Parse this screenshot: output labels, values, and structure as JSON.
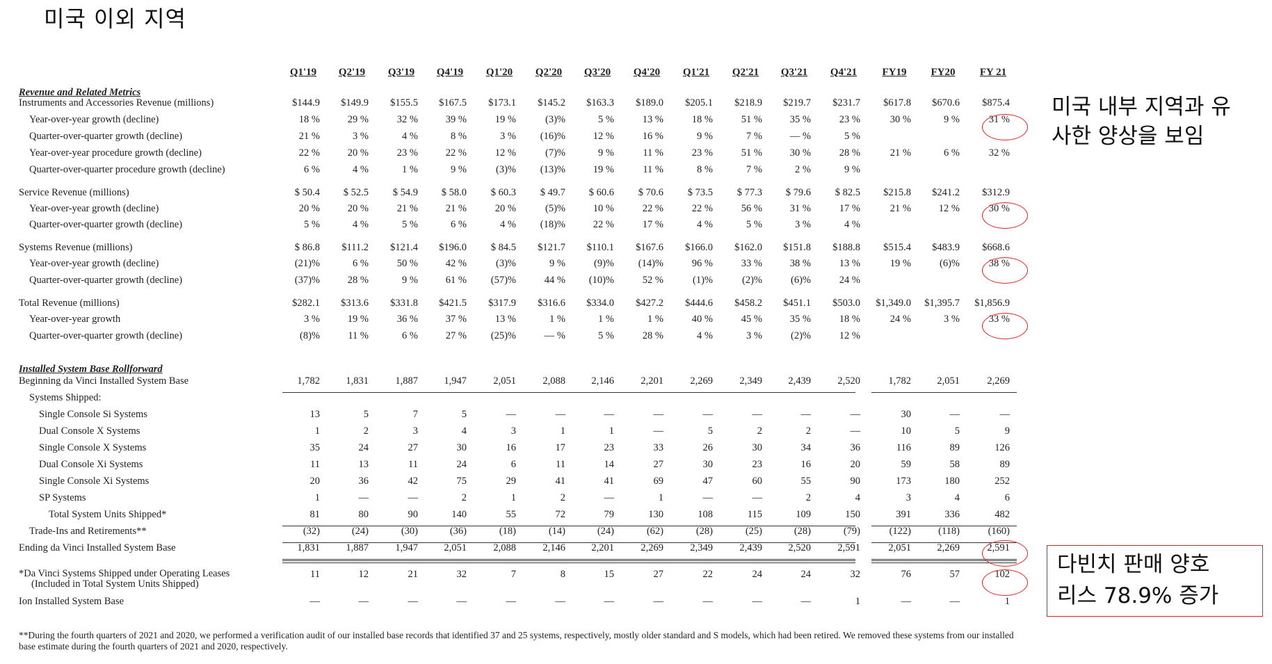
{
  "slide_title": "미국 이외 지역",
  "annotation_1": [
    "미국 내부 지역과 유",
    "사한 양상을 보임"
  ],
  "annotation_2": [
    "다빈치 판매 양호",
    "리스 78.9% 증가"
  ],
  "accent_color": "#e02020",
  "columns": [
    "Q1'19",
    "Q2'19",
    "Q3'19",
    "Q4'19",
    "Q1'20",
    "Q2'20",
    "Q3'20",
    "Q4'20",
    "Q1'21",
    "Q2'21",
    "Q3'21",
    "Q4'21",
    "FY19",
    "FY20",
    "FY 21"
  ],
  "sections": [
    {
      "title": "Revenue and Related Metrics",
      "top": 125
    },
    {
      "title": "Installed System Base Rollforward",
      "top": 523
    }
  ],
  "rows": [
    {
      "label": "Instruments and Accessories Revenue (millions)",
      "indent": 0,
      "top": 149,
      "values": [
        "$144.9",
        "$149.9",
        "$155.5",
        "$167.5",
        "$173.1",
        "$145.2",
        "$163.3",
        "$189.0",
        "$205.1",
        "$218.9",
        "$219.7",
        "$231.7",
        "$617.8",
        "$670.6",
        "$875.4"
      ]
    },
    {
      "label": "Year-over-year growth (decline)",
      "indent": 1,
      "top": 173,
      "values": [
        "18 %",
        "29 %",
        "32 %",
        "39 %",
        "19 %",
        "(3)%",
        "5 %",
        "13 %",
        "18 %",
        "51 %",
        "35 %",
        "23 %",
        "30 %",
        "9 %",
        "31 %"
      ]
    },
    {
      "label": "Quarter-over-quarter growth (decline)",
      "indent": 1,
      "top": 197,
      "values": [
        "21 %",
        "3 %",
        "4 %",
        "8 %",
        "3 %",
        "(16)%",
        "12 %",
        "16 %",
        "9 %",
        "7 %",
        "— %",
        "5 %",
        "",
        "",
        ""
      ]
    },
    {
      "label": "Year-over-year procedure growth (decline)",
      "indent": 1,
      "top": 221,
      "values": [
        "22 %",
        "20 %",
        "23 %",
        "22 %",
        "12 %",
        "(7)%",
        "9 %",
        "11 %",
        "23 %",
        "51 %",
        "30 %",
        "28 %",
        "21 %",
        "6 %",
        "32 %"
      ]
    },
    {
      "label": "Quarter-over-quarter procedure growth (decline)",
      "indent": 1,
      "top": 245,
      "values": [
        "6 %",
        "4 %",
        "1 %",
        "9 %",
        "(3)%",
        "(13)%",
        "19 %",
        "11 %",
        "8 %",
        "7 %",
        "2 %",
        "9 %",
        "",
        "",
        ""
      ]
    },
    {
      "label": "Service Revenue (millions)",
      "indent": 0,
      "top": 278,
      "values": [
        "$ 50.4",
        "$ 52.5",
        "$ 54.9",
        "$ 58.0",
        "$ 60.3",
        "$ 49.7",
        "$ 60.6",
        "$ 70.6",
        "$ 73.5",
        "$ 77.3",
        "$ 79.6",
        "$ 82.5",
        "$215.8",
        "$241.2",
        "$312.9"
      ]
    },
    {
      "label": "Year-over-year growth (decline)",
      "indent": 1,
      "top": 301,
      "values": [
        "20 %",
        "20 %",
        "21 %",
        "21 %",
        "20 %",
        "(5)%",
        "10 %",
        "22 %",
        "22 %",
        "56 %",
        "31 %",
        "17 %",
        "21 %",
        "12 %",
        "30 %"
      ]
    },
    {
      "label": "Quarter-over-quarter growth (decline)",
      "indent": 1,
      "top": 324,
      "values": [
        "5 %",
        "4 %",
        "5 %",
        "6 %",
        "4 %",
        "(18)%",
        "22 %",
        "17 %",
        "4 %",
        "5 %",
        "3 %",
        "4 %",
        "",
        "",
        ""
      ]
    },
    {
      "label": "Systems Revenue (millions)",
      "indent": 0,
      "top": 357,
      "values": [
        "$ 86.8",
        "$111.2",
        "$121.4",
        "$196.0",
        "$ 84.5",
        "$121.7",
        "$110.1",
        "$167.6",
        "$166.0",
        "$162.0",
        "$151.8",
        "$188.8",
        "$515.4",
        "$483.9",
        "$668.6"
      ]
    },
    {
      "label": "Year-over-year growth (decline)",
      "indent": 1,
      "top": 380,
      "values": [
        "(21)%",
        "6 %",
        "50 %",
        "42 %",
        "(3)%",
        "9 %",
        "(9)%",
        "(14)%",
        "96 %",
        "33 %",
        "38 %",
        "13 %",
        "19 %",
        "(6)%",
        "38 %"
      ]
    },
    {
      "label": "Quarter-over-quarter growth (decline)",
      "indent": 1,
      "top": 404,
      "values": [
        "(37)%",
        "28 %",
        "9 %",
        "61 %",
        "(57)%",
        "44 %",
        "(10)%",
        "52 %",
        "(1)%",
        "(2)%",
        "(6)%",
        "24 %",
        "",
        "",
        ""
      ]
    },
    {
      "label": "Total Revenue (millions)",
      "indent": 0,
      "top": 437,
      "values": [
        "$282.1",
        "$313.6",
        "$331.8",
        "$421.5",
        "$317.9",
        "$316.6",
        "$334.0",
        "$427.2",
        "$444.6",
        "$458.2",
        "$451.1",
        "$503.0",
        "$1,349.0",
        "$1,395.7",
        "$1,856.9"
      ]
    },
    {
      "label": "Year-over-year growth",
      "indent": 1,
      "top": 460,
      "values": [
        "3 %",
        "19 %",
        "36 %",
        "37 %",
        "13 %",
        "1 %",
        "1 %",
        "1 %",
        "40 %",
        "45 %",
        "35 %",
        "18 %",
        "24 %",
        "3 %",
        "33 %"
      ]
    },
    {
      "label": "Quarter-over-quarter growth (decline)",
      "indent": 1,
      "top": 484,
      "values": [
        "(8)%",
        "11 %",
        "6 %",
        "27 %",
        "(25)%",
        "— %",
        "5 %",
        "28 %",
        "4 %",
        "3 %",
        "(2)%",
        "12 %",
        "",
        "",
        ""
      ]
    },
    {
      "label": "Beginning da Vinci Installed System Base",
      "indent": 0,
      "top": 549,
      "values": [
        "1,782",
        "1,831",
        "1,887",
        "1,947",
        "2,051",
        "2,088",
        "2,146",
        "2,201",
        "2,269",
        "2,349",
        "2,439",
        "2,520",
        "1,782",
        "2,051",
        "2,269"
      ]
    },
    {
      "label": "Systems Shipped:",
      "indent": 1,
      "top": 573,
      "values": [
        "",
        "",
        "",
        "",
        "",
        "",
        "",
        "",
        "",
        "",
        "",
        "",
        "",
        "",
        ""
      ]
    },
    {
      "label": "Single Console Si Systems",
      "indent": 2,
      "top": 597,
      "values": [
        "13",
        "5",
        "7",
        "5",
        "—",
        "—",
        "—",
        "—",
        "—",
        "—",
        "—",
        "—",
        "30",
        "—",
        "—"
      ]
    },
    {
      "label": "Dual Console X Systems",
      "indent": 2,
      "top": 621,
      "values": [
        "1",
        "2",
        "3",
        "4",
        "3",
        "1",
        "1",
        "—",
        "5",
        "2",
        "2",
        "—",
        "10",
        "5",
        "9"
      ]
    },
    {
      "label": "Single Console X Systems",
      "indent": 2,
      "top": 645,
      "values": [
        "35",
        "24",
        "27",
        "30",
        "16",
        "17",
        "23",
        "33",
        "26",
        "30",
        "34",
        "36",
        "116",
        "89",
        "126"
      ]
    },
    {
      "label": "Dual Console Xi Systems",
      "indent": 2,
      "top": 669,
      "values": [
        "11",
        "13",
        "11",
        "24",
        "6",
        "11",
        "14",
        "27",
        "30",
        "23",
        "16",
        "20",
        "59",
        "58",
        "89"
      ]
    },
    {
      "label": "Single Console Xi Systems",
      "indent": 2,
      "top": 693,
      "values": [
        "20",
        "36",
        "42",
        "75",
        "29",
        "41",
        "41",
        "69",
        "47",
        "60",
        "55",
        "90",
        "173",
        "180",
        "252"
      ]
    },
    {
      "label": "SP Systems",
      "indent": 2,
      "top": 717,
      "values": [
        "1",
        "—",
        "—",
        "2",
        "1",
        "2",
        "—",
        "1",
        "—",
        "—",
        "2",
        "4",
        "3",
        "4",
        "6"
      ]
    },
    {
      "label": "Total System Units Shipped*",
      "indent": 3,
      "top": 741,
      "values": [
        "81",
        "80",
        "90",
        "140",
        "55",
        "72",
        "79",
        "130",
        "108",
        "115",
        "109",
        "150",
        "391",
        "336",
        "482"
      ]
    },
    {
      "label": "Trade-Ins and Retirements**",
      "indent": 1,
      "top": 765,
      "values": [
        "(32)",
        "(24)",
        "(30)",
        "(36)",
        "(18)",
        "(14)",
        "(24)",
        "(62)",
        "(28)",
        "(25)",
        "(28)",
        "(79)",
        "(122)",
        "(118)",
        "(160)"
      ]
    },
    {
      "label": "Ending da Vinci Installed System Base",
      "indent": 0,
      "top": 789,
      "values": [
        "1,831",
        "1,887",
        "1,947",
        "2,051",
        "2,088",
        "2,146",
        "2,201",
        "2,269",
        "2,349",
        "2,439",
        "2,520",
        "2,591",
        "2,051",
        "2,269",
        "2,591"
      ]
    },
    {
      "label": "*Da Vinci Systems Shipped under Operating Leases",
      "label2": "(Included in Total System Units Shipped)",
      "indent": 0,
      "top": 827,
      "values": [
        "11",
        "12",
        "21",
        "32",
        "7",
        "8",
        "15",
        "27",
        "22",
        "24",
        "24",
        "32",
        "76",
        "57",
        "102"
      ]
    },
    {
      "label": "Ion Installed System Base",
      "indent": 0,
      "top": 866,
      "values": [
        "—",
        "—",
        "—",
        "—",
        "—",
        "—",
        "—",
        "—",
        "—",
        "—",
        "—",
        "1",
        "—",
        "—",
        "1"
      ]
    }
  ],
  "footnote": "**During the fourth quarters of 2021 and 2020, we performed a verification audit of our installed base records that identified 37 and 25 systems, respectively, mostly older standard and S models, which had been retired. We removed these systems from our installed base estimate during the fourth quarters of 2021 and 2020, respectively."
}
